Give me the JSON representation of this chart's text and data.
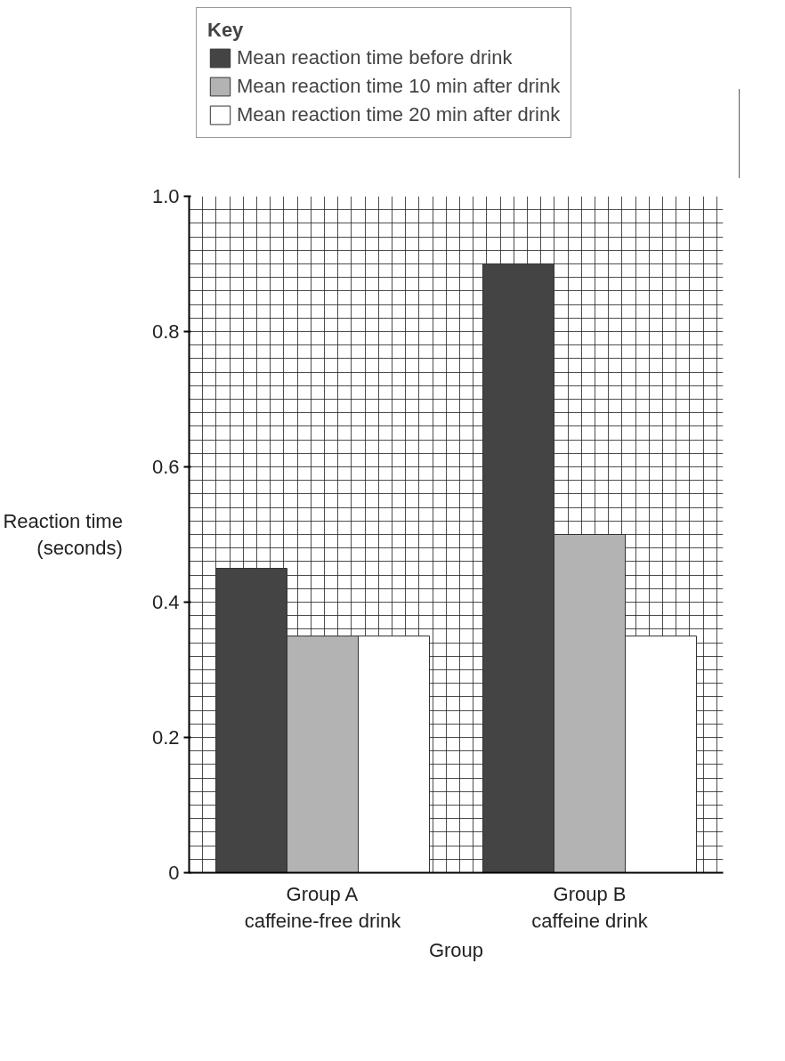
{
  "chart_data": {
    "type": "bar",
    "xlabel": "Group",
    "ylabel": "Reaction time\n(seconds)",
    "legend_title": "Key",
    "categories": [
      "Group A\ncaffeine-free drink",
      "Group B\ncaffeine drink"
    ],
    "series": [
      {
        "name": "Mean reaction time before drink",
        "color": "#444444",
        "values": [
          0.45,
          0.9
        ]
      },
      {
        "name": "Mean reaction time 10 min after drink",
        "color": "#b3b3b3",
        "values": [
          0.35,
          0.5
        ]
      },
      {
        "name": "Mean reaction time 20 min after drink",
        "color": "#ffffff",
        "values": [
          0.35,
          0.35
        ]
      }
    ],
    "ylim": [
      0,
      1.0
    ],
    "yticks": [
      {
        "value": 0,
        "label": "0"
      },
      0.2,
      0.4,
      0.6,
      0.8,
      {
        "value": 1.0,
        "label": "1.0"
      }
    ],
    "grid": true,
    "legend": "top left"
  }
}
